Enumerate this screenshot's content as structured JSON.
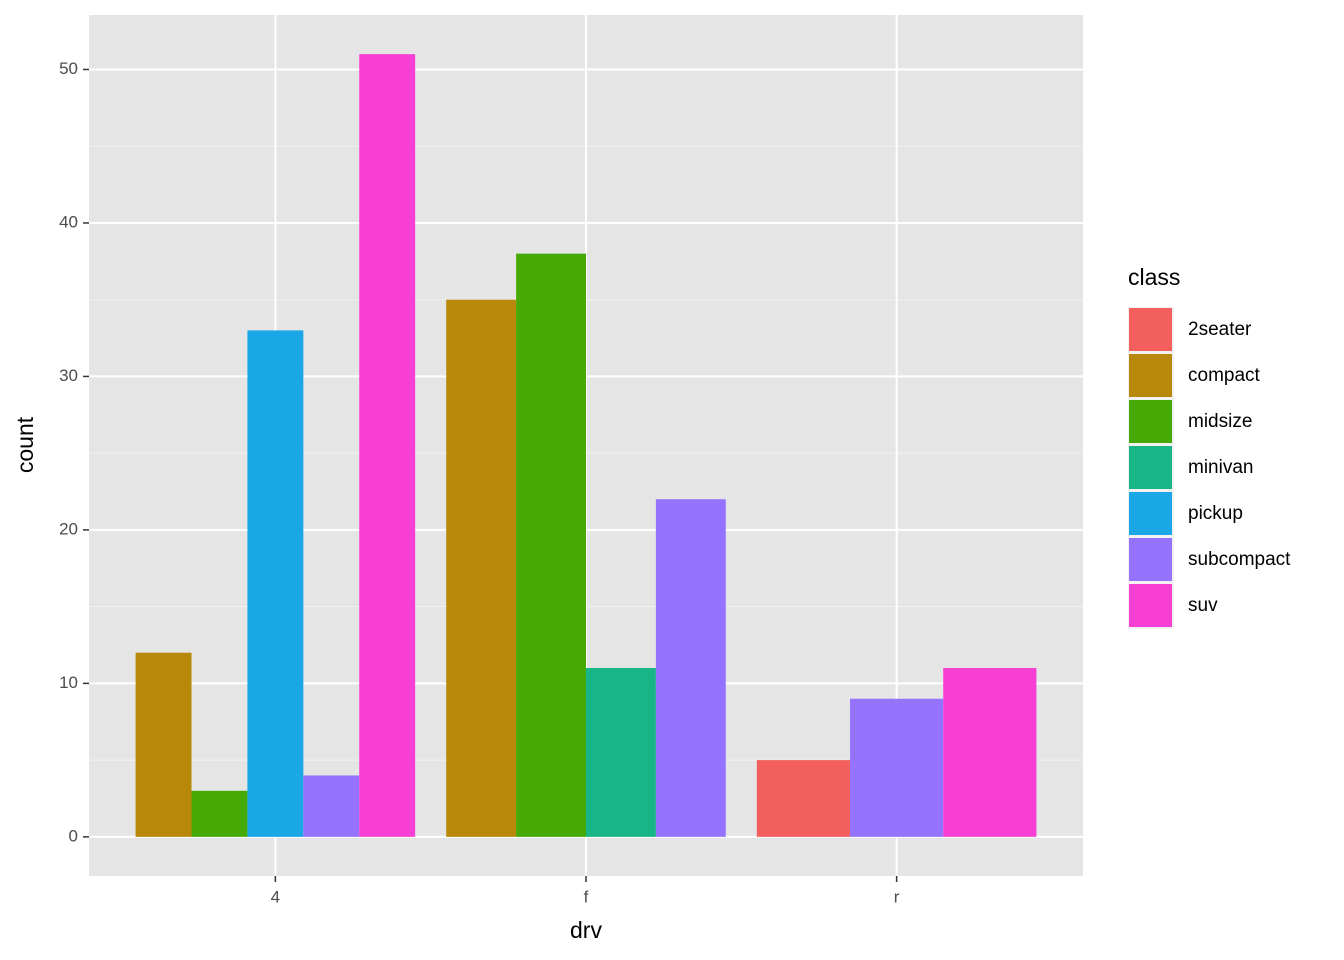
{
  "chart_data": {
    "type": "bar",
    "x_label": "drv",
    "y_label": "count",
    "legend_title": "class",
    "categories": [
      "4",
      "f",
      "r"
    ],
    "series": [
      {
        "name": "2seater",
        "color": "#F25F5C",
        "values": [
          null,
          null,
          5
        ]
      },
      {
        "name": "compact",
        "color": "#B7880A",
        "values": [
          12,
          35,
          null
        ]
      },
      {
        "name": "midsize",
        "color": "#46A905",
        "values": [
          3,
          38,
          null
        ]
      },
      {
        "name": "minivan",
        "color": "#18B587",
        "values": [
          null,
          11,
          null
        ]
      },
      {
        "name": "pickup",
        "color": "#19A7E6",
        "values": [
          33,
          null,
          null
        ]
      },
      {
        "name": "subcompact",
        "color": "#9673FE",
        "values": [
          4,
          22,
          9
        ]
      },
      {
        "name": "suv",
        "color": "#F740D3",
        "values": [
          51,
          null,
          11
        ]
      }
    ],
    "ylim": [
      -2.55,
      53.55
    ],
    "yticks": [
      0,
      10,
      20,
      30,
      40,
      50
    ],
    "grid": true,
    "legend_position": "right"
  }
}
